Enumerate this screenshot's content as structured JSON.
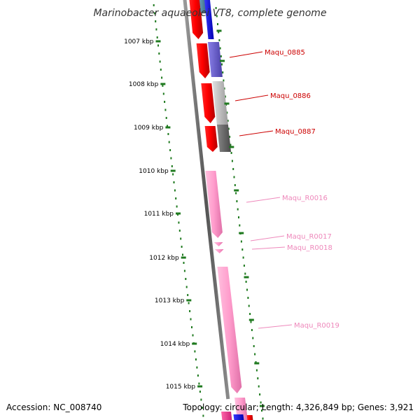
{
  "title": "Marinobacter aquaeolei VT8, complete genome",
  "accession": "Accession: NC_008740",
  "summary": "Topology: circular; Length: 4,326,849 bp; Genes: 3,921",
  "colors": {
    "tick": "#1f7a1f",
    "backbone": "#666666",
    "cds_label": "#cc0000",
    "rna_label": "#ee88bb"
  },
  "ticks": [
    "1007 kbp",
    "1008 kbp",
    "1009 kbp",
    "1010 kbp",
    "1011 kbp",
    "1012 kbp",
    "1013 kbp",
    "1014 kbp",
    "1015 kbp"
  ],
  "genes": [
    {
      "label": "Maqu_0885",
      "color": "#cc0000"
    },
    {
      "label": "Maqu_0886",
      "color": "#cc0000"
    },
    {
      "label": "Maqu_0887",
      "color": "#cc0000"
    },
    {
      "label": "Maqu_R0016",
      "color": "#ee88bb"
    },
    {
      "label": "Maqu_R0017",
      "color": "#ee88bb"
    },
    {
      "label": "Maqu_R0018",
      "color": "#ee88bb"
    },
    {
      "label": "Maqu_R0019",
      "color": "#ee88bb"
    }
  ]
}
